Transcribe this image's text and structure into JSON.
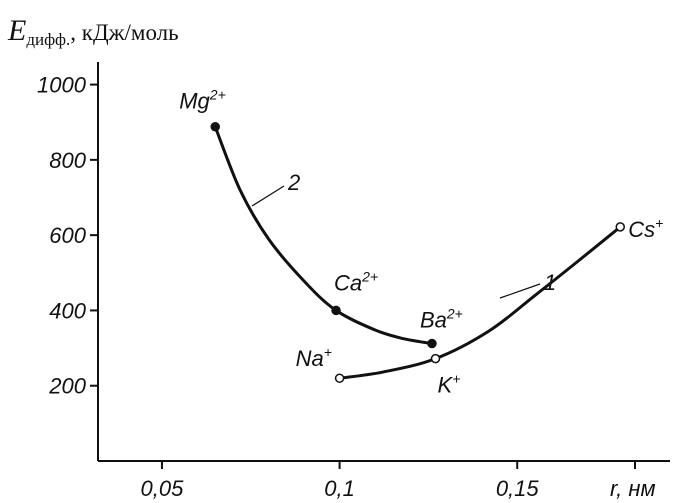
{
  "chart_data": {
    "type": "line",
    "ylabel_main": "E",
    "ylabel_sub": "дифф.",
    "ylabel_unit": ", кДж/моль",
    "xlabel": "r, нм",
    "xlim": [
      0.032,
      0.193
    ],
    "ylim": [
      0,
      1060
    ],
    "xticks": [
      0.05,
      0.1,
      0.15
    ],
    "xtick_labels": [
      "0,05",
      "0,1",
      "0,15"
    ],
    "yticks": [
      200,
      400,
      600,
      800,
      1000
    ],
    "ytick_labels": [
      "200",
      "400",
      "600",
      "800",
      "1000"
    ],
    "series": [
      {
        "name": "1",
        "marker": "open",
        "points": [
          {
            "x": 0.1,
            "y": 220,
            "label": "Na",
            "charge": "+"
          },
          {
            "x": 0.127,
            "y": 272,
            "label": "K",
            "charge": "+"
          },
          {
            "x": 0.179,
            "y": 622,
            "label": "Cs",
            "charge": "+"
          }
        ],
        "curve": [
          [
            0.1,
            220
          ],
          [
            0.112,
            236
          ],
          [
            0.127,
            272
          ],
          [
            0.142,
            345
          ],
          [
            0.155,
            440
          ],
          [
            0.167,
            530
          ],
          [
            0.179,
            622
          ]
        ]
      },
      {
        "name": "2",
        "marker": "filled",
        "points": [
          {
            "x": 0.065,
            "y": 888,
            "label": "Mg",
            "charge": "2+"
          },
          {
            "x": 0.099,
            "y": 400,
            "label": "Ca",
            "charge": "2+"
          },
          {
            "x": 0.126,
            "y": 312,
            "label": "Ba",
            "charge": "2+"
          }
        ],
        "curve": [
          [
            0.065,
            888
          ],
          [
            0.072,
            720
          ],
          [
            0.08,
            590
          ],
          [
            0.09,
            478
          ],
          [
            0.099,
            400
          ],
          [
            0.11,
            348
          ],
          [
            0.118,
            325
          ],
          [
            0.126,
            312
          ]
        ]
      }
    ]
  }
}
